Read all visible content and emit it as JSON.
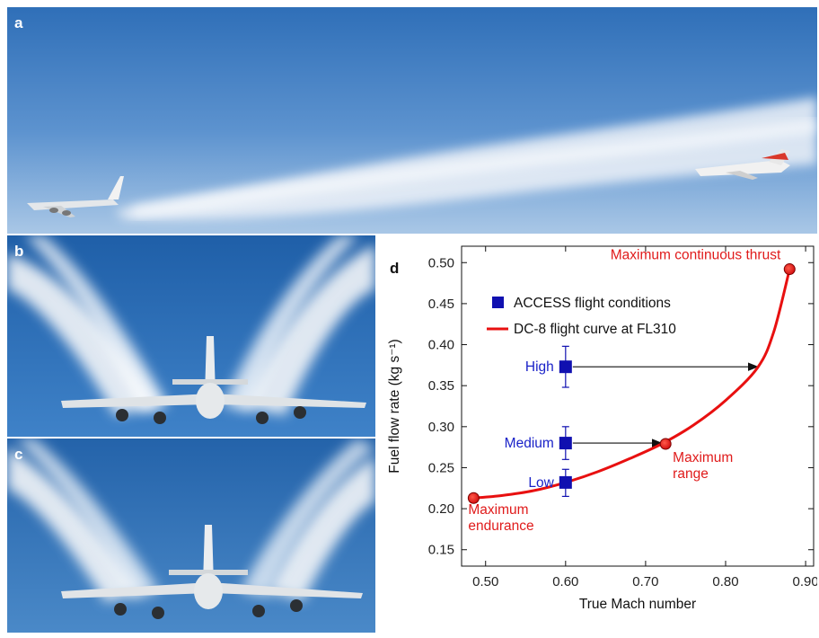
{
  "panels": {
    "a": {
      "letter": "a"
    },
    "b": {
      "letter": "b"
    },
    "c": {
      "letter": "c"
    },
    "d": {
      "letter": "d"
    }
  },
  "colors": {
    "sky_light": "#8fb6e0",
    "sky_dark": "#2a6fbf",
    "contrail": "#eef2f8",
    "access": "#1010b0",
    "curve": "#e81010",
    "cond_label": "#1a22c8"
  },
  "chart_data": {
    "type": "line",
    "xlabel": "True Mach number",
    "ylabel": "Fuel flow rate (kg s⁻¹)",
    "xlim": [
      0.47,
      0.91
    ],
    "ylim": [
      0.13,
      0.52
    ],
    "x_ticks": [
      0.5,
      0.6,
      0.7,
      0.8,
      0.9
    ],
    "x_tick_labels": [
      "0.50",
      "0.60",
      "0.70",
      "0.80",
      "0.90"
    ],
    "y_ticks": [
      0.15,
      0.2,
      0.25,
      0.3,
      0.35,
      0.4,
      0.45,
      0.5
    ],
    "y_tick_labels": [
      "0.15",
      "0.20",
      "0.25",
      "0.30",
      "0.35",
      "0.40",
      "0.45",
      "0.50"
    ],
    "legend": {
      "position": "top-left",
      "entries": [
        "ACCESS flight conditions",
        "DC-8 flight curve at FL310"
      ]
    },
    "series": [
      {
        "name": "DC-8 flight curve at FL310",
        "x": [
          0.485,
          0.52,
          0.56,
          0.6,
          0.64,
          0.68,
          0.72,
          0.76,
          0.8,
          0.84,
          0.86,
          0.88
        ],
        "y": [
          0.213,
          0.216,
          0.222,
          0.232,
          0.245,
          0.261,
          0.279,
          0.302,
          0.332,
          0.372,
          0.415,
          0.492
        ]
      },
      {
        "name": "ACCESS flight conditions",
        "points": [
          {
            "label": "High",
            "x": 0.6,
            "y": 0.373,
            "err_low": 0.348,
            "err_high": 0.398
          },
          {
            "label": "Medium",
            "x": 0.6,
            "y": 0.28,
            "err_low": 0.26,
            "err_high": 0.3
          },
          {
            "label": "Low",
            "x": 0.6,
            "y": 0.232,
            "err_low": 0.215,
            "err_high": 0.248
          }
        ]
      }
    ],
    "marked_points": [
      {
        "text_lines": [
          "Maximum",
          "endurance"
        ],
        "x": 0.485,
        "y": 0.213
      },
      {
        "text_lines": [
          "Maximum",
          "range"
        ],
        "x": 0.725,
        "y": 0.279
      },
      {
        "text_lines": [
          "Maximum continuous thrust"
        ],
        "x": 0.88,
        "y": 0.492
      }
    ],
    "arrows": [
      {
        "from": [
          0.6,
          0.373
        ],
        "to": [
          0.84,
          0.373
        ]
      },
      {
        "from": [
          0.6,
          0.28
        ],
        "to": [
          0.72,
          0.28
        ]
      }
    ]
  }
}
